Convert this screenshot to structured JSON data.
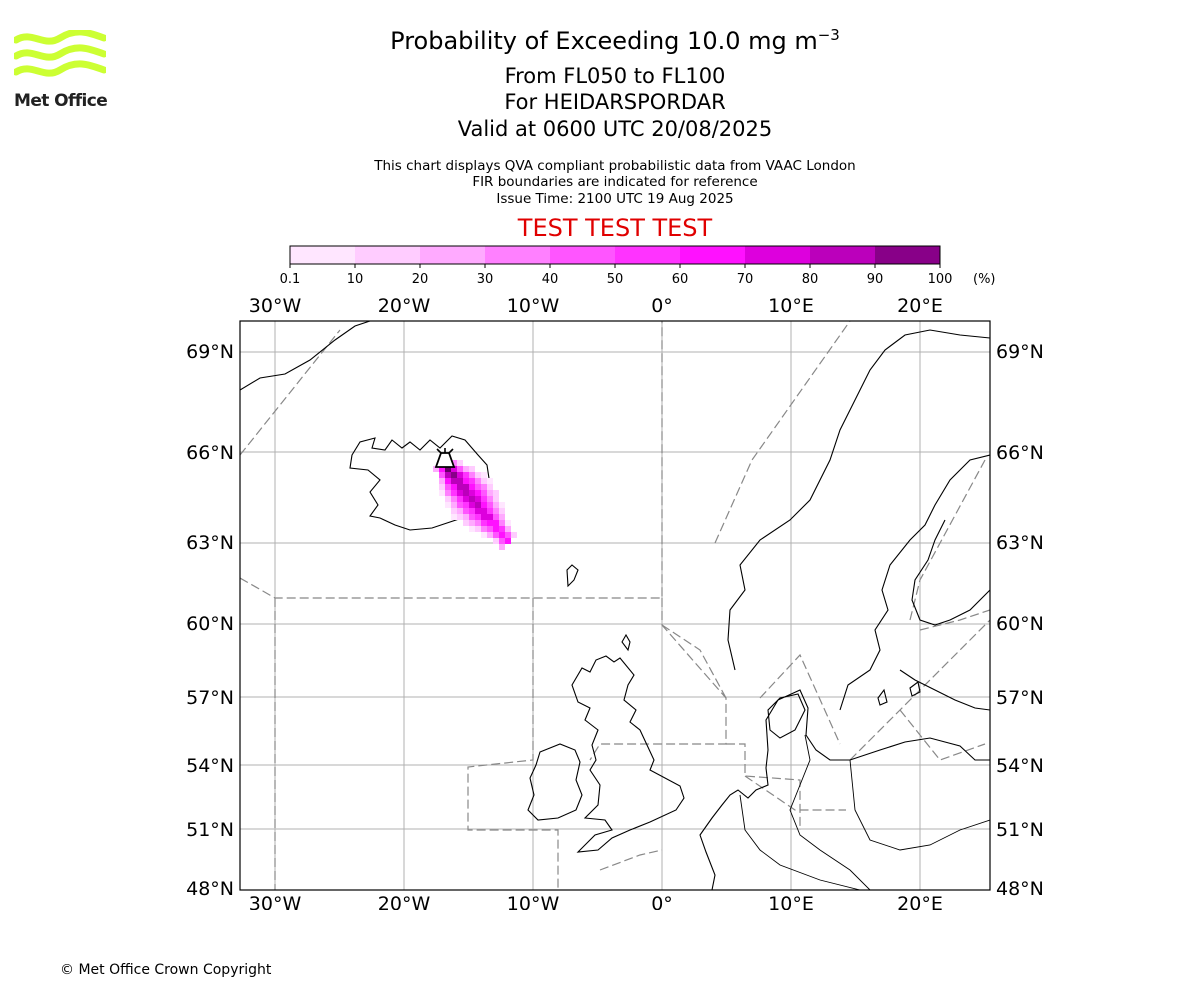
{
  "logo": {
    "text": "Met Office",
    "icon": "met-office-wave-logo",
    "color": "#ccff33"
  },
  "header": {
    "title_prefix": "Probability of Exceeding 10.0 mg m",
    "title_exponent": "−3",
    "lines": [
      "From FL050 to FL100",
      "For HEIDARSPORDAR",
      "Valid at 0600 UTC 20/08/2025"
    ],
    "sublines": [
      "This chart displays QVA compliant probabilistic data from VAAC London",
      "FIR boundaries are indicated for reference",
      "Issue Time: 2100 UTC 19 Aug 2025"
    ],
    "banner": "TEST TEST TEST",
    "banner_color": "#e00000"
  },
  "colorbar": {
    "ticks": [
      "0.1",
      "10",
      "20",
      "30",
      "40",
      "50",
      "60",
      "70",
      "80",
      "90",
      "100"
    ],
    "unit": "(%)",
    "colors": [
      "#ffe6ff",
      "#ffccff",
      "#ffaaff",
      "#ff80ff",
      "#ff55ff",
      "#ff33ff",
      "#ff11ff",
      "#dd00dd",
      "#bb00bb",
      "#880088",
      "#660066"
    ]
  },
  "map": {
    "lon_labels": [
      "30°W",
      "20°W",
      "10°W",
      "0°",
      "10°E",
      "20°E"
    ],
    "lat_labels": [
      "69°N",
      "66°N",
      "63°N",
      "60°N",
      "57°N",
      "54°N",
      "51°N",
      "48°N"
    ],
    "volcano": {
      "icon": "volcano-icon"
    }
  },
  "footer": {
    "copyright": "© Met Office Crown Copyright"
  }
}
